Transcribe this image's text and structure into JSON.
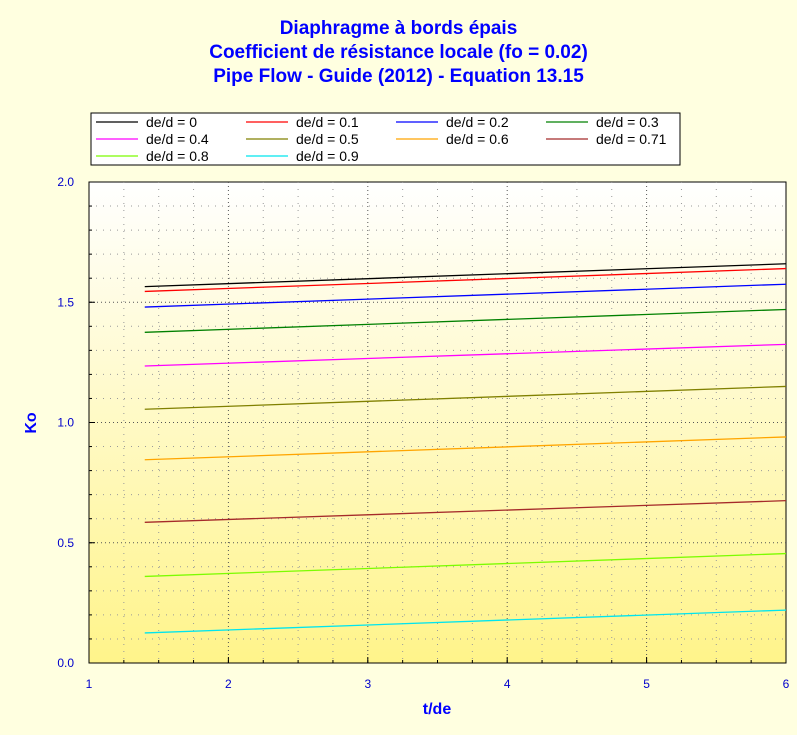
{
  "title_lines": [
    "Diaphragme à bords épais",
    "Coefficient de résistance locale (fo = 0.02)",
    "Pipe Flow - Guide (2012) - Equation 13.15"
  ],
  "chart_data": {
    "type": "line",
    "title": "Diaphragme à bords épais",
    "subtitle": [
      "Coefficient de résistance locale (fo = 0.02)",
      "Pipe Flow - Guide (2012) - Equation 13.15"
    ],
    "xlabel": "t/de",
    "ylabel": "Ko",
    "xlim": [
      1,
      6
    ],
    "ylim": [
      0,
      2
    ],
    "x_ticks": [
      "1",
      "2",
      "3",
      "4",
      "5",
      "6"
    ],
    "y_ticks": [
      "0.0",
      "0.5",
      "1.0",
      "1.5",
      "2.0"
    ],
    "grid": true,
    "legend_position": "top",
    "x": [
      1.4,
      6
    ],
    "series": [
      {
        "name": "de/d = 0",
        "color": "#000000",
        "values": [
          1.565,
          1.66
        ]
      },
      {
        "name": "de/d = 0.1",
        "color": "#ff0000",
        "values": [
          1.545,
          1.64
        ]
      },
      {
        "name": "de/d = 0.2",
        "color": "#0000ff",
        "values": [
          1.48,
          1.575
        ]
      },
      {
        "name": "de/d = 0.3",
        "color": "#008000",
        "values": [
          1.375,
          1.47
        ]
      },
      {
        "name": "de/d = 0.4",
        "color": "#ff00ff",
        "values": [
          1.235,
          1.325
        ]
      },
      {
        "name": "de/d = 0.5",
        "color": "#808000",
        "values": [
          1.055,
          1.15
        ]
      },
      {
        "name": "de/d = 0.6",
        "color": "#ffa500",
        "values": [
          0.845,
          0.94
        ]
      },
      {
        "name": "de/d = 0.71",
        "color": "#a52a2a",
        "values": [
          0.585,
          0.675
        ]
      },
      {
        "name": "de/d = 0.8",
        "color": "#7cfc00",
        "values": [
          0.36,
          0.455
        ]
      },
      {
        "name": "de/d = 0.9",
        "color": "#00e5ee",
        "values": [
          0.125,
          0.22
        ]
      }
    ]
  }
}
